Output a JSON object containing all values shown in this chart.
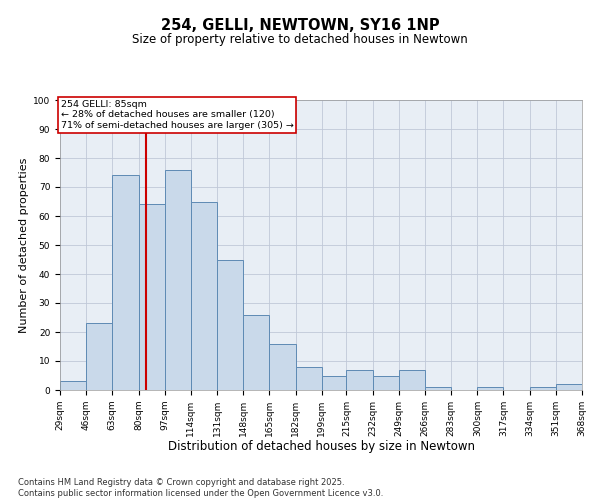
{
  "title": "254, GELLI, NEWTOWN, SY16 1NP",
  "subtitle": "Size of property relative to detached houses in Newtown",
  "xlabel": "Distribution of detached houses by size in Newtown",
  "ylabel": "Number of detached properties",
  "bin_edges": [
    29,
    46,
    63,
    80,
    97,
    114,
    131,
    148,
    165,
    182,
    199,
    215,
    232,
    249,
    266,
    283,
    300,
    317,
    334,
    351,
    368
  ],
  "bar_heights": [
    3,
    23,
    74,
    64,
    76,
    65,
    45,
    26,
    16,
    8,
    5,
    7,
    5,
    7,
    1,
    0,
    1,
    0,
    1,
    2
  ],
  "bar_facecolor": "#c9d9ea",
  "bar_edgecolor": "#5e8ab4",
  "bar_linewidth": 0.7,
  "grid_color": "#c0c8d8",
  "background_color": "#e8eef5",
  "property_line_x": 85,
  "property_line_color": "#cc0000",
  "annotation_text": "254 GELLI: 85sqm\n← 28% of detached houses are smaller (120)\n71% of semi-detached houses are larger (305) →",
  "annotation_box_color": "#cc0000",
  "ylim": [
    0,
    100
  ],
  "yticks": [
    0,
    10,
    20,
    30,
    40,
    50,
    60,
    70,
    80,
    90,
    100
  ],
  "tick_labels": [
    "29sqm",
    "46sqm",
    "63sqm",
    "80sqm",
    "97sqm",
    "114sqm",
    "131sqm",
    "148sqm",
    "165sqm",
    "182sqm",
    "199sqm",
    "215sqm",
    "232sqm",
    "249sqm",
    "266sqm",
    "283sqm",
    "300sqm",
    "317sqm",
    "334sqm",
    "351sqm",
    "368sqm"
  ],
  "footnote": "Contains HM Land Registry data © Crown copyright and database right 2025.\nContains public sector information licensed under the Open Government Licence v3.0.",
  "title_fontsize": 10.5,
  "subtitle_fontsize": 8.5,
  "xlabel_fontsize": 8.5,
  "ylabel_fontsize": 8,
  "tick_fontsize": 6.5,
  "footnote_fontsize": 6
}
